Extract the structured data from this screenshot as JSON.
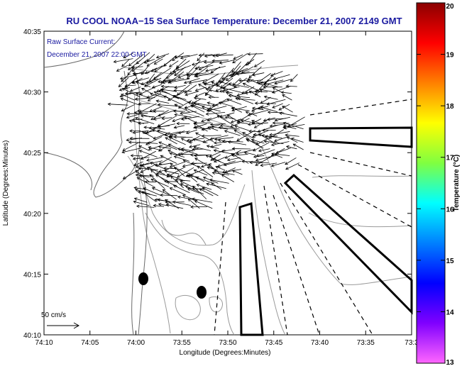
{
  "title": "RU COOL  NOAA−15  Sea Surface Temperature:  December 21, 2007 2149 GMT",
  "annotation": {
    "line1": "Raw Surface Current:",
    "line2": "December 21, 2007 22:00 GMT"
  },
  "scale_label": "50 cm/s",
  "axes": {
    "xlabel": "Longitude (Degrees:Minutes)",
    "ylabel": "Latitude (Degrees:Minutes)",
    "xticks": [
      "74:10",
      "74:05",
      "74:00",
      "73:55",
      "73:50",
      "73:45",
      "73:40",
      "73:35",
      "73:3"
    ],
    "yticks": [
      "40:35",
      "40:30",
      "40:25",
      "40:20",
      "40:15",
      "40:10"
    ]
  },
  "colorbar": {
    "label": "Temperature (°C)",
    "ticks": [
      "20",
      "19",
      "18",
      "17",
      "16",
      "15",
      "14",
      "13"
    ],
    "colors": [
      "#8b0000",
      "#ff0000",
      "#ff8000",
      "#ffff00",
      "#80ff40",
      "#00ffff",
      "#0080ff",
      "#0000ff",
      "#8000ff",
      "#ff66ff"
    ]
  },
  "colors": {
    "title": "#1a1aa0",
    "annotation": "#1a1aa0",
    "contour": "#9a9a9a",
    "coast": "#6a6a6a"
  }
}
